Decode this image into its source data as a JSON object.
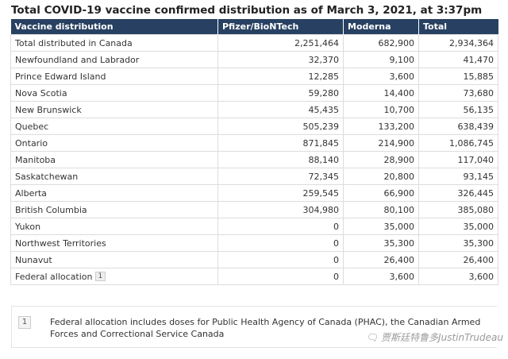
{
  "title": "Total COVID-19 vaccine confirmed distribution as of March 3, 2021, at 3:37pm",
  "table": {
    "headers": [
      "Vaccine distribution",
      "Pfizer/BioNTech",
      "Moderna",
      "Total"
    ],
    "rows": [
      {
        "region": "Total distributed in Canada",
        "pfizer": "2,251,464",
        "moderna": "682,900",
        "total": "2,934,364"
      },
      {
        "region": "Newfoundland and Labrador",
        "pfizer": "32,370",
        "moderna": "9,100",
        "total": "41,470"
      },
      {
        "region": "Prince Edward Island",
        "pfizer": "12,285",
        "moderna": "3,600",
        "total": "15,885"
      },
      {
        "region": "Nova Scotia",
        "pfizer": "59,280",
        "moderna": "14,400",
        "total": "73,680"
      },
      {
        "region": "New Brunswick",
        "pfizer": "45,435",
        "moderna": "10,700",
        "total": "56,135"
      },
      {
        "region": "Quebec",
        "pfizer": "505,239",
        "moderna": "133,200",
        "total": "638,439"
      },
      {
        "region": "Ontario",
        "pfizer": "871,845",
        "moderna": "214,900",
        "total": "1,086,745"
      },
      {
        "region": "Manitoba",
        "pfizer": "88,140",
        "moderna": "28,900",
        "total": "117,040"
      },
      {
        "region": "Saskatchewan",
        "pfizer": "72,345",
        "moderna": "20,800",
        "total": "93,145"
      },
      {
        "region": "Alberta",
        "pfizer": "259,545",
        "moderna": "66,900",
        "total": "326,445"
      },
      {
        "region": "British Columbia",
        "pfizer": "304,980",
        "moderna": "80,100",
        "total": "385,080"
      },
      {
        "region": "Yukon",
        "pfizer": "0",
        "moderna": "35,000",
        "total": "35,000"
      },
      {
        "region": "Northwest Territories",
        "pfizer": "0",
        "moderna": "35,300",
        "total": "35,300"
      },
      {
        "region": "Nunavut",
        "pfizer": "0",
        "moderna": "26,400",
        "total": "26,400"
      },
      {
        "region": "Federal allocation",
        "footnote_ref": "1",
        "pfizer": "0",
        "moderna": "3,600",
        "total": "3,600"
      }
    ]
  },
  "footnote": {
    "number": "1",
    "text": "Federal allocation includes doses for Public Health Agency of Canada (PHAC), the Canadian Armed Forces and Correctional Service Canada"
  },
  "watermark": {
    "icon": "wechat-icon",
    "text": "贾斯廷特鲁多JustinTrudeau"
  }
}
